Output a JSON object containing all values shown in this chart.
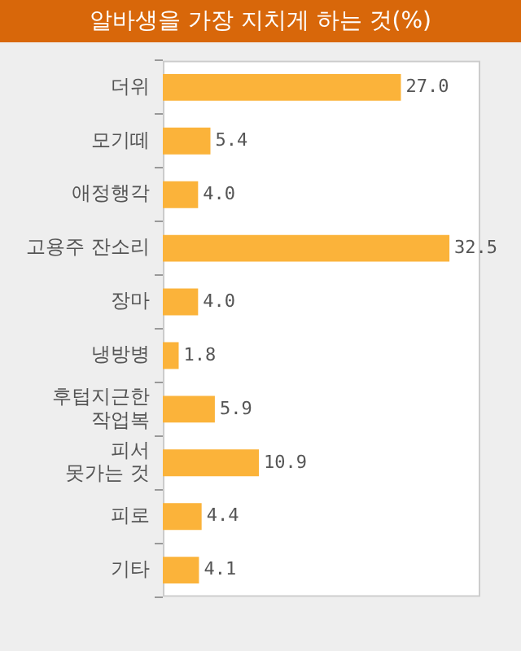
{
  "chart_data": {
    "type": "bar",
    "orientation": "horizontal",
    "title": "알바생을 가장 지치게 하는 것(%)",
    "categories": [
      "더위",
      "모기떼",
      "애정행각",
      "고용주 잔소리",
      "장마",
      "냉방병",
      "후텁지근한\n작업복",
      "피서\n못가는 것",
      "피로",
      "기타"
    ],
    "values": [
      27.0,
      5.4,
      4.0,
      32.5,
      4.0,
      1.8,
      5.9,
      10.9,
      4.4,
      4.1
    ],
    "colors": [
      "#fbb33a",
      "#fbb33a",
      "#fbb33a",
      "#fbb33a",
      "#fbb33a",
      "#fbb33a",
      "#fbb33a",
      "#fbb33a",
      "#fbb33a",
      "#fbb33a"
    ],
    "value_labels": [
      "27.0",
      "5.4",
      "4.0",
      "32.5",
      "4.0",
      "1.8",
      "5.9",
      "10.9",
      "4.4",
      "4.1"
    ],
    "xlim": [
      0,
      36
    ],
    "tick_labels": "y",
    "legend": false
  }
}
